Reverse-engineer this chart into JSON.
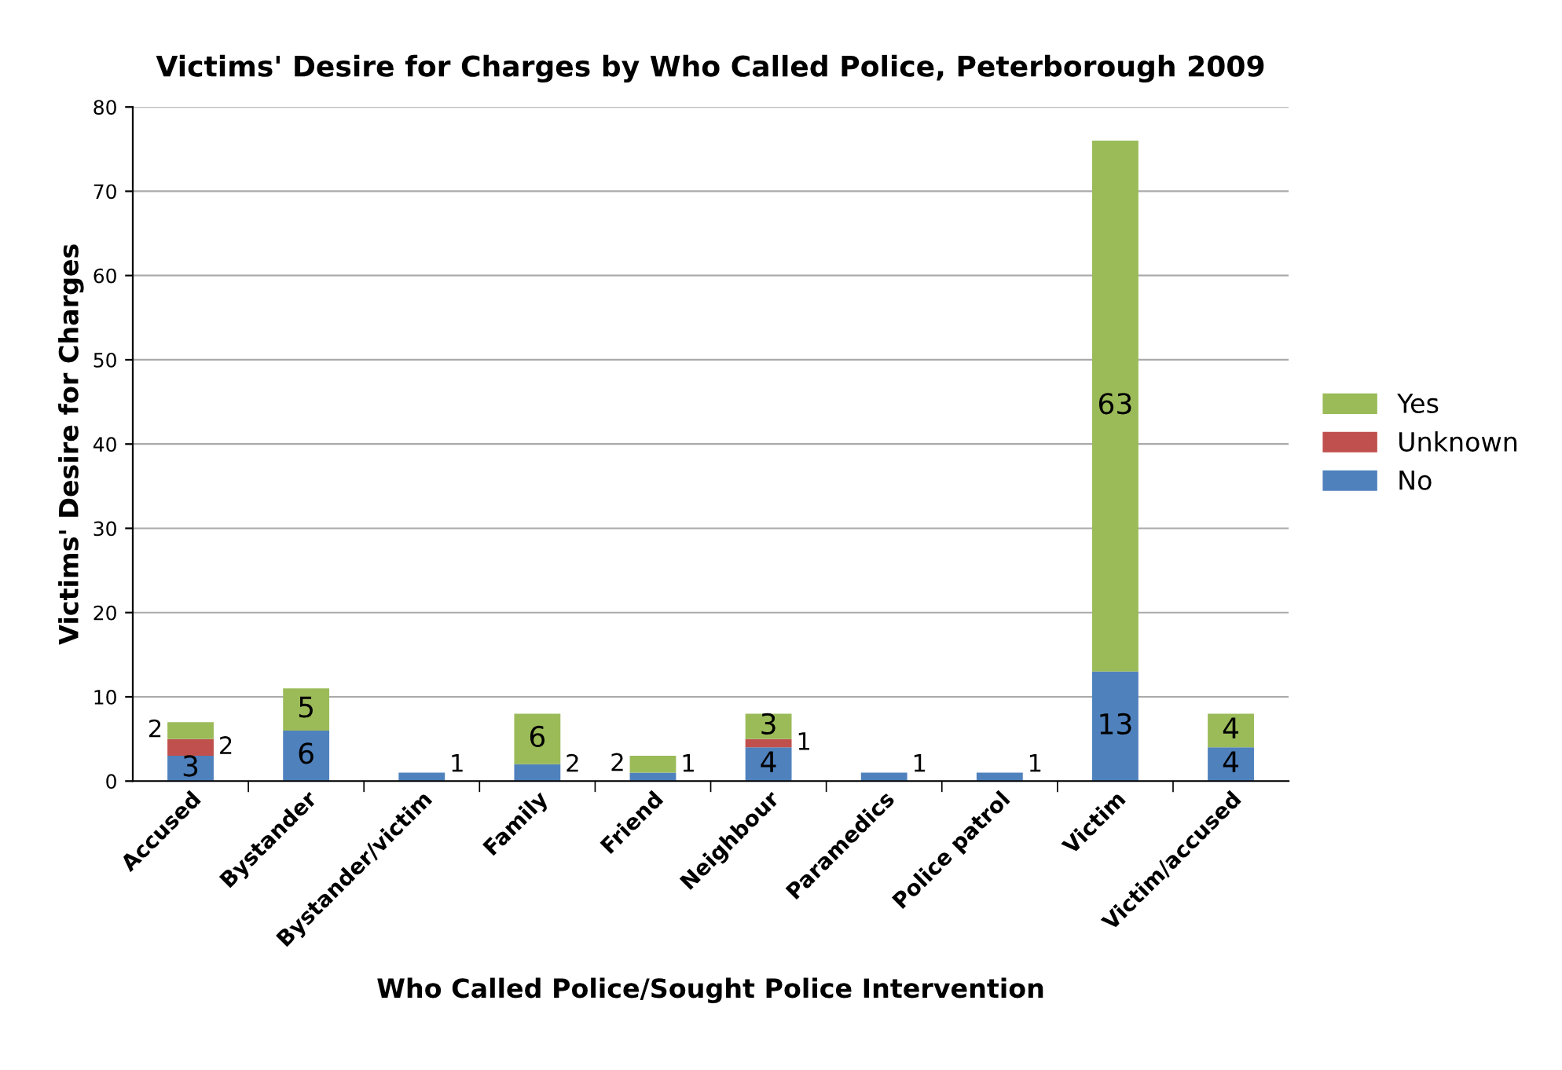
{
  "chart_data": {
    "type": "bar",
    "stacked": true,
    "title": "Victims' Desire for Charges by Who Called Police, Peterborough 2009",
    "xlabel": "Who Called Police/Sought Police Intervention",
    "ylabel": "Victims' Desire for Charges",
    "categories": [
      "Accused",
      "Bystander",
      "Bystander/victim",
      "Family",
      "Friend",
      "Neighbour",
      "Paramedics",
      "Police patrol",
      "Victim",
      "Victim/accused"
    ],
    "series": [
      {
        "name": "No",
        "color": "#4f81bd",
        "values": [
          3,
          6,
          1,
          2,
          1,
          4,
          1,
          1,
          13,
          4
        ]
      },
      {
        "name": "Unknown",
        "color": "#c0504d",
        "values": [
          2,
          null,
          null,
          null,
          null,
          1,
          null,
          null,
          null,
          null
        ]
      },
      {
        "name": "Yes",
        "color": "#9bbb59",
        "values": [
          2,
          5,
          null,
          6,
          2,
          3,
          null,
          null,
          63,
          4
        ]
      }
    ],
    "ylim": [
      0,
      80
    ],
    "yticks": [
      0,
      10,
      20,
      30,
      40,
      50,
      60,
      70,
      80
    ],
    "grid": "y",
    "legend": "right",
    "data_labels": true
  }
}
